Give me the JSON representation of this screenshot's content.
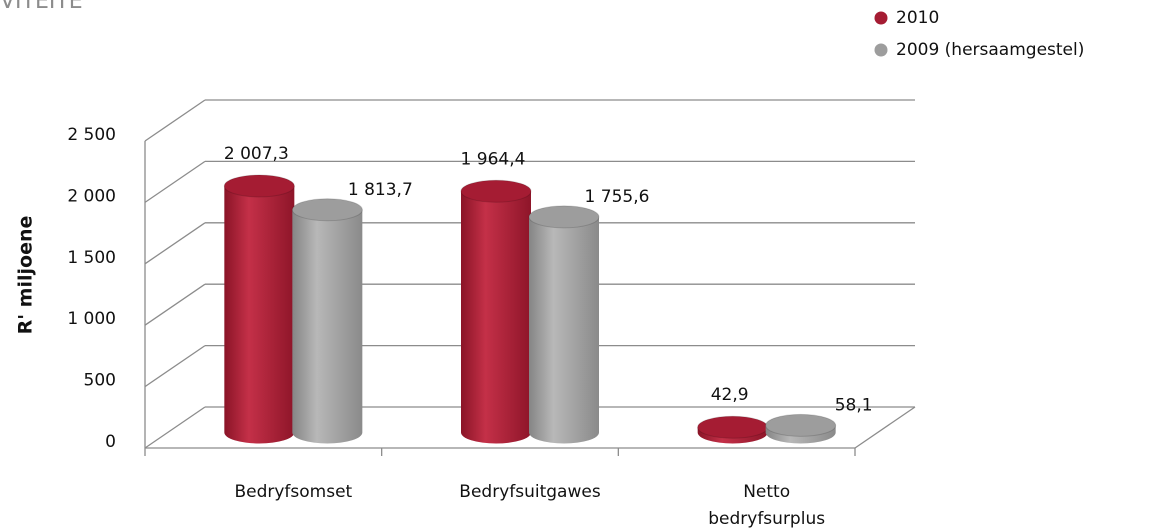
{
  "chart_data": {
    "type": "bar3d",
    "title": "VITEITE",
    "y_label": "R' miljoene",
    "categories": [
      "Bedryfsomset",
      "Bedryfsuitgawes",
      "Netto bedryfsurplus"
    ],
    "series": [
      {
        "name": "2010",
        "color": "#a51c33",
        "values": [
          2007.3,
          1964.4,
          42.9
        ],
        "value_labels": [
          "2 007,3",
          "1 964,4",
          "42,9"
        ]
      },
      {
        "name": "2009 (hersaamgestel)",
        "color": "#9d9d9d",
        "values": [
          1813.7,
          1755.6,
          58.1
        ],
        "value_labels": [
          "1 813,7",
          "1 755,6",
          "58,1"
        ]
      }
    ],
    "ylim": [
      0,
      2500
    ],
    "yticks": [
      0,
      500,
      {
        "value": 1000,
        "label": "1 000"
      },
      {
        "value": 1500,
        "label": "1 500"
      },
      {
        "value": 2000,
        "label": "2 000"
      },
      {
        "value": 2500,
        "label": "2 500"
      }
    ],
    "grid": true,
    "legend": "top-right"
  }
}
